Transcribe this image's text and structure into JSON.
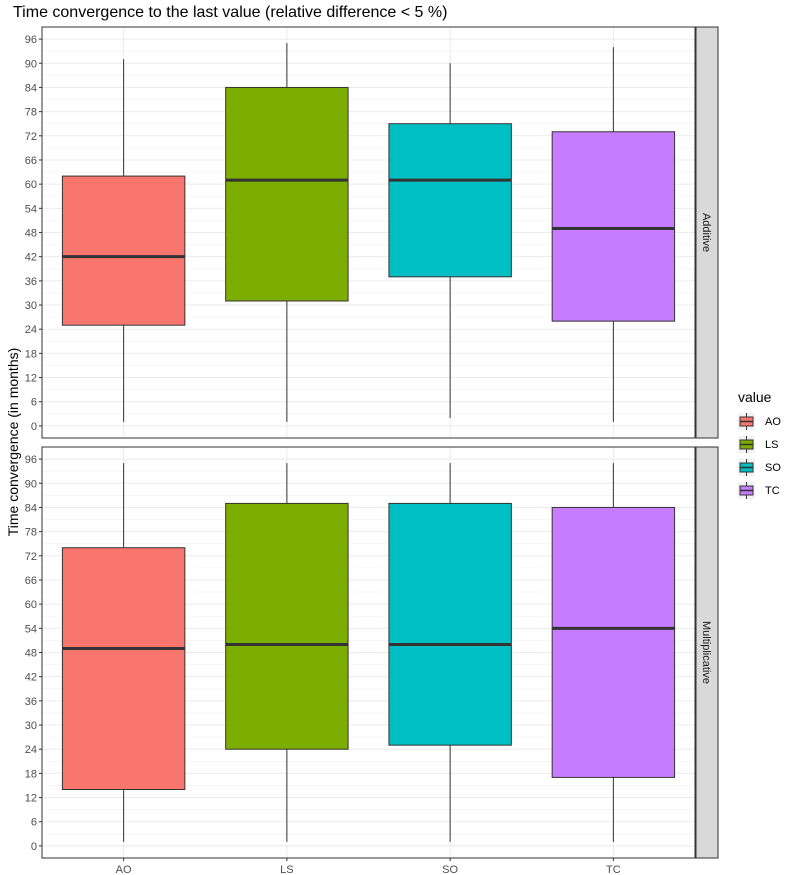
{
  "chart_data": {
    "type": "boxplot",
    "title": "Time convergence to the last value (relative difference < 5 %)",
    "ylabel": "Time convergence (in months)",
    "xlabel": "",
    "categories": [
      "AO",
      "LS",
      "SO",
      "TC"
    ],
    "ylim": [
      -3,
      99
    ],
    "yticks": [
      0,
      6,
      12,
      18,
      24,
      30,
      36,
      42,
      48,
      54,
      60,
      66,
      72,
      78,
      84,
      90,
      96
    ],
    "grid": true,
    "legend": {
      "title": "value",
      "position": "right",
      "entries": [
        "AO",
        "LS",
        "SO",
        "TC"
      ]
    },
    "colors": {
      "AO": "#F8766D",
      "LS": "#7CAE00",
      "SO": "#00BFC4",
      "TC": "#C77CFF"
    },
    "facets": [
      {
        "label": "Additive",
        "boxes": [
          {
            "category": "AO",
            "min": 1,
            "q1": 25,
            "median": 42,
            "q3": 62,
            "max": 91
          },
          {
            "category": "LS",
            "min": 1,
            "q1": 31,
            "median": 61,
            "q3": 84,
            "max": 95
          },
          {
            "category": "SO",
            "min": 2,
            "q1": 37,
            "median": 61,
            "q3": 75,
            "max": 90
          },
          {
            "category": "TC",
            "min": 1,
            "q1": 26,
            "median": 49,
            "q3": 73,
            "max": 94
          }
        ]
      },
      {
        "label": "Multiplicative",
        "boxes": [
          {
            "category": "AO",
            "min": 1,
            "q1": 14,
            "median": 49,
            "q3": 74,
            "max": 95
          },
          {
            "category": "LS",
            "min": 1,
            "q1": 24,
            "median": 50,
            "q3": 85,
            "max": 95
          },
          {
            "category": "SO",
            "min": 1,
            "q1": 25,
            "median": 50,
            "q3": 85,
            "max": 95
          },
          {
            "category": "TC",
            "min": 1,
            "q1": 17,
            "median": 54,
            "q3": 84,
            "max": 95
          }
        ]
      }
    ]
  }
}
